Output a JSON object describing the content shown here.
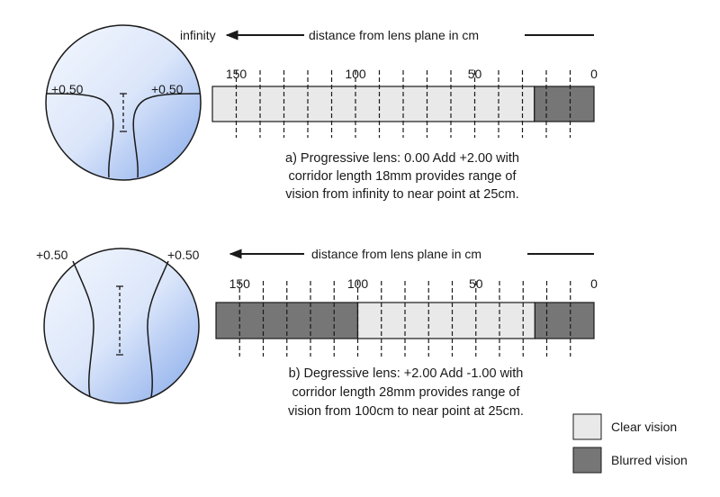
{
  "colors": {
    "clear": "#e9e9e9",
    "blurred": "#767676",
    "lens_fill_light": "#f2f6fd",
    "lens_fill_blue": "#8fb0ec",
    "stroke": "#1a1a1a"
  },
  "panels": [
    {
      "id": "a",
      "infinity_label": "infinity",
      "axis_title": "distance from lens plane in cm",
      "lens": {
        "left_power": "+0.50",
        "right_power": "+0.50"
      },
      "scale": {
        "tick_labels": [
          "150",
          "100",
          "50",
          "0"
        ],
        "segments": [
          {
            "from": 160,
            "to": 25,
            "state": "clear"
          },
          {
            "from": 25,
            "to": 0,
            "state": "blurred"
          }
        ]
      },
      "caption": [
        "a)  Progressive lens: 0.00 Add +2.00 with",
        "corridor length 18mm provides range of",
        "vision from infinity to near point at 25cm."
      ]
    },
    {
      "id": "b",
      "infinity_label": "",
      "axis_title": "distance from lens plane in cm",
      "lens": {
        "left_power": "+0.50",
        "right_power": "+0.50"
      },
      "scale": {
        "tick_labels": [
          "150",
          "100",
          "50",
          "0"
        ],
        "segments": [
          {
            "from": 160,
            "to": 100,
            "state": "blurred"
          },
          {
            "from": 100,
            "to": 25,
            "state": "clear"
          },
          {
            "from": 25,
            "to": 0,
            "state": "blurred"
          }
        ]
      },
      "caption": [
        "b)  Degressive lens: +2.00 Add -1.00 with",
        "corridor length 28mm provides range of",
        "vision from 100cm to near point at 25cm."
      ]
    }
  ],
  "legend": [
    {
      "state": "clear",
      "label": "Clear vision"
    },
    {
      "state": "blurred",
      "label": "Blurred vision"
    }
  ]
}
